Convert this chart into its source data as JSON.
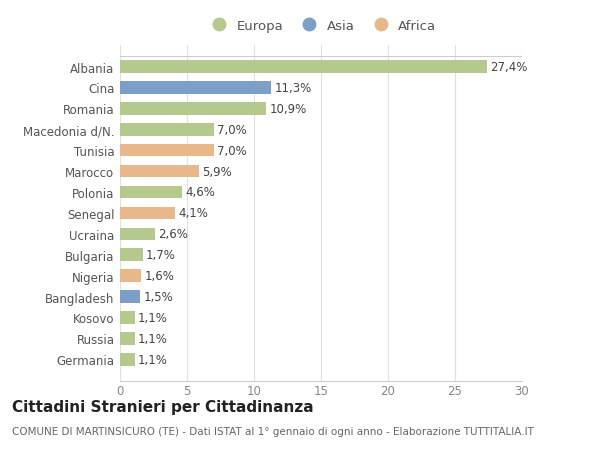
{
  "categories": [
    "Albania",
    "Cina",
    "Romania",
    "Macedonia d/N.",
    "Tunisia",
    "Marocco",
    "Polonia",
    "Senegal",
    "Ucraina",
    "Bulgaria",
    "Nigeria",
    "Bangladesh",
    "Kosovo",
    "Russia",
    "Germania"
  ],
  "values": [
    27.4,
    11.3,
    10.9,
    7.0,
    7.0,
    5.9,
    4.6,
    4.1,
    2.6,
    1.7,
    1.6,
    1.5,
    1.1,
    1.1,
    1.1
  ],
  "continents": [
    "Europa",
    "Asia",
    "Europa",
    "Europa",
    "Africa",
    "Africa",
    "Europa",
    "Africa",
    "Europa",
    "Europa",
    "Africa",
    "Asia",
    "Europa",
    "Europa",
    "Europa"
  ],
  "labels": [
    "27,4%",
    "11,3%",
    "10,9%",
    "7,0%",
    "7,0%",
    "5,9%",
    "4,6%",
    "4,1%",
    "2,6%",
    "1,7%",
    "1,6%",
    "1,5%",
    "1,1%",
    "1,1%",
    "1,1%"
  ],
  "colors": {
    "Europa": "#b5c98e",
    "Asia": "#7b9fc7",
    "Africa": "#e8b88a"
  },
  "xlim": [
    0,
    30
  ],
  "xticks": [
    0,
    5,
    10,
    15,
    20,
    25,
    30
  ],
  "background_color": "#ffffff",
  "grid_color": "#e0e0e0",
  "title": "Cittadini Stranieri per Cittadinanza",
  "subtitle": "COMUNE DI MARTINSICURO (TE) - Dati ISTAT al 1° gennaio di ogni anno - Elaborazione TUTTITALIA.IT",
  "bar_height": 0.6,
  "label_fontsize": 8.5,
  "tick_fontsize": 8.5,
  "title_fontsize": 11,
  "subtitle_fontsize": 7.5,
  "legend_entries": [
    "Europa",
    "Asia",
    "Africa"
  ]
}
